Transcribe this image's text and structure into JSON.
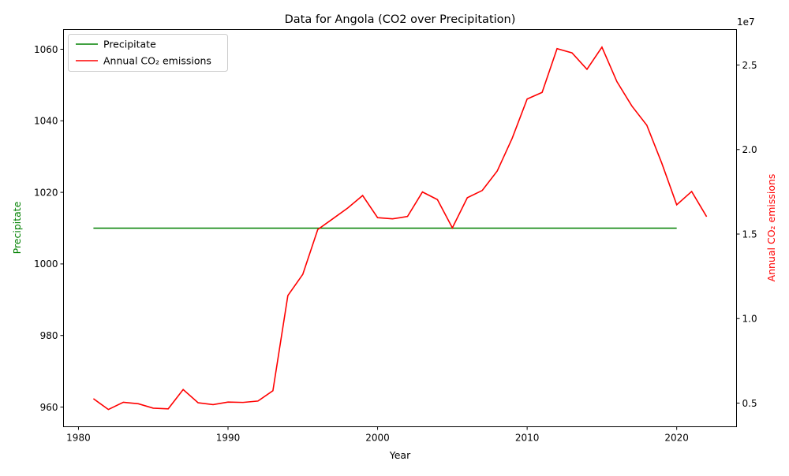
{
  "chart_data": {
    "type": "line",
    "title": "Data for Angola (CO2 over Precipitation)",
    "xlabel": "Year",
    "ylabel_left": "Precipitate",
    "ylabel_right": "Annual CO₂ emissions",
    "right_axis_multiplier": "1e7",
    "xlim": [
      1979,
      2024
    ],
    "ylim_left": [
      954.5,
      1065.5
    ],
    "ylim_right": [
      3600000,
      27100000
    ],
    "x_ticks": [
      1980,
      1990,
      2000,
      2010,
      2020
    ],
    "y_left_ticks": [
      960,
      980,
      1000,
      1020,
      1040,
      1060
    ],
    "y_right_ticks": [
      0.5,
      1.0,
      1.5,
      2.0,
      2.5
    ],
    "legend": {
      "placement": "top-left"
    },
    "grid": false,
    "series": [
      {
        "name": "Precipitate",
        "axis": "left",
        "color": "#008000",
        "x": [
          1981,
          2020
        ],
        "values": [
          1010,
          1010
        ]
      },
      {
        "name": "Annual CO₂ emissions",
        "axis": "right",
        "color": "#ff0000",
        "x": [
          1981,
          1982,
          1983,
          1984,
          1985,
          1986,
          1987,
          1988,
          1989,
          1990,
          1991,
          1992,
          1993,
          1994,
          1995,
          1996,
          1997,
          1998,
          1999,
          2000,
          2001,
          2002,
          2003,
          2004,
          2005,
          2006,
          2007,
          2008,
          2009,
          2010,
          2011,
          2012,
          2013,
          2014,
          2015,
          2016,
          2017,
          2018,
          2019,
          2020,
          2021,
          2022
        ],
        "values": [
          5260000,
          4620000,
          5050000,
          4960000,
          4700000,
          4660000,
          5800000,
          5020000,
          4910000,
          5060000,
          5040000,
          5120000,
          5730000,
          11360000,
          12620000,
          15270000,
          15900000,
          16540000,
          17280000,
          15970000,
          15900000,
          16040000,
          17490000,
          17040000,
          15370000,
          17150000,
          17580000,
          18730000,
          20670000,
          22990000,
          23380000,
          25970000,
          25720000,
          24750000,
          26060000,
          24020000,
          22580000,
          21440000,
          19200000,
          16730000,
          17520000,
          16030000
        ]
      }
    ]
  }
}
